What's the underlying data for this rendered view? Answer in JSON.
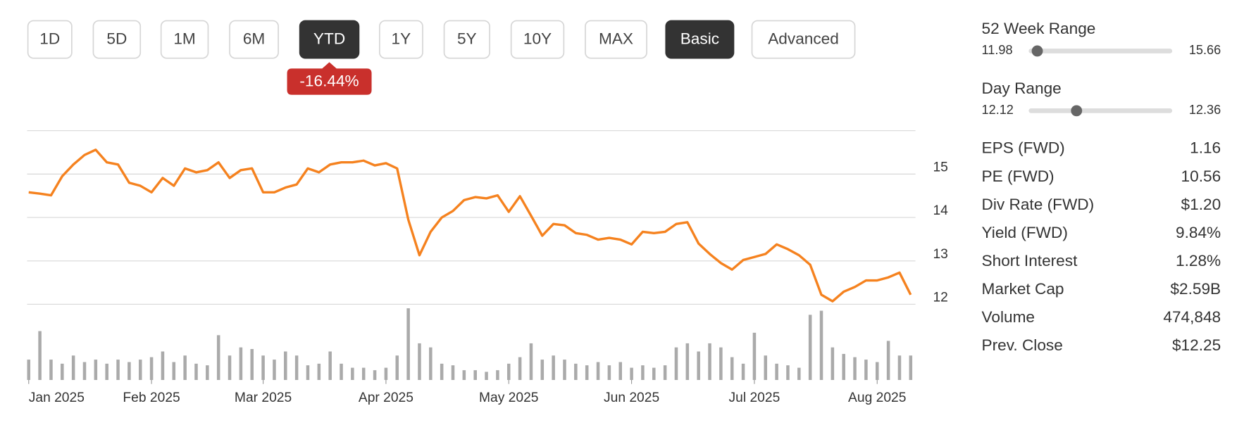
{
  "range_buttons": [
    "1D",
    "5D",
    "1M",
    "6M",
    "YTD",
    "1Y",
    "5Y",
    "10Y",
    "MAX"
  ],
  "active_range_index": 4,
  "view_buttons": [
    "Basic",
    "Advanced"
  ],
  "active_view_index": 0,
  "change_badge": "-16.44%",
  "chart_data": {
    "type": "line",
    "color": "#f5821f",
    "categories": [
      "Jan 2025",
      null,
      null,
      null,
      null,
      null,
      null,
      null,
      null,
      null,
      null,
      "Feb 2025",
      null,
      null,
      null,
      null,
      null,
      null,
      null,
      null,
      null,
      "Mar 2025",
      null,
      null,
      null,
      null,
      null,
      null,
      null,
      null,
      null,
      null,
      "Apr 2025",
      null,
      null,
      null,
      null,
      null,
      null,
      null,
      null,
      null,
      null,
      "May 2025",
      null,
      null,
      null,
      null,
      null,
      null,
      null,
      null,
      null,
      null,
      "Jun 2025",
      null,
      null,
      null,
      null,
      null,
      null,
      null,
      null,
      null,
      null,
      "Jul 2025",
      null,
      null,
      null,
      null,
      null,
      null,
      null,
      null,
      null,
      null,
      "Aug 2025",
      null,
      null,
      null
    ],
    "values": [
      14.58,
      14.55,
      14.51,
      14.95,
      15.22,
      15.44,
      15.56,
      15.27,
      15.22,
      14.8,
      14.73,
      14.58,
      14.91,
      14.73,
      15.13,
      15.04,
      15.09,
      15.27,
      14.91,
      15.09,
      15.13,
      14.58,
      14.58,
      14.69,
      14.76,
      15.13,
      15.04,
      15.22,
      15.27,
      15.27,
      15.31,
      15.2,
      15.25,
      15.13,
      13.95,
      13.13,
      13.67,
      14.0,
      14.15,
      14.4,
      14.47,
      14.44,
      14.51,
      14.13,
      14.49,
      14.04,
      13.58,
      13.85,
      13.82,
      13.64,
      13.6,
      13.49,
      13.53,
      13.49,
      13.38,
      13.67,
      13.64,
      13.67,
      13.85,
      13.89,
      13.4,
      13.16,
      12.95,
      12.8,
      13.02,
      13.09,
      13.16,
      13.38,
      13.27,
      13.13,
      12.91,
      12.22,
      12.07,
      12.29,
      12.4,
      12.55,
      12.55,
      12.62,
      12.73,
      12.22
    ],
    "volume": {
      "color": "#aaaaaa",
      "values": [
        400000,
        960000,
        400000,
        320000,
        480000,
        352000,
        400000,
        320000,
        400000,
        352000,
        400000,
        448000,
        560000,
        352000,
        480000,
        320000,
        288000,
        880000,
        480000,
        640000,
        608000,
        480000,
        400000,
        560000,
        480000,
        288000,
        320000,
        560000,
        320000,
        240000,
        240000,
        192000,
        240000,
        480000,
        1408000,
        720000,
        640000,
        320000,
        288000,
        192000,
        192000,
        160000,
        192000,
        320000,
        448000,
        720000,
        400000,
        480000,
        400000,
        320000,
        288000,
        352000,
        288000,
        352000,
        240000,
        288000,
        240000,
        288000,
        640000,
        720000,
        560000,
        720000,
        640000,
        448000,
        320000,
        928000,
        480000,
        320000,
        288000,
        240000,
        1280000,
        1360000,
        640000,
        512000,
        448000,
        400000,
        352000,
        768000,
        480000,
        480000
      ]
    },
    "ylim": [
      12,
      16
    ],
    "yticks": [
      12,
      13,
      14,
      15
    ],
    "grid": true
  },
  "ranges": [
    {
      "label": "52 Week Range",
      "low": 11.98,
      "high": 15.66,
      "marker": 12.2
    },
    {
      "label": "Day Range",
      "low": 12.12,
      "high": 12.36,
      "marker": 12.2
    }
  ],
  "stats": [
    [
      "EPS (FWD)",
      "1.16"
    ],
    [
      "PE (FWD)",
      "10.56"
    ],
    [
      "Div Rate (FWD)",
      "$1.20"
    ],
    [
      "Yield (FWD)",
      "9.84%"
    ],
    [
      "Short Interest",
      "1.28%"
    ],
    [
      "Market Cap",
      "$2.59B"
    ],
    [
      "Volume",
      "474,848"
    ],
    [
      "Prev. Close",
      "$12.25"
    ]
  ]
}
